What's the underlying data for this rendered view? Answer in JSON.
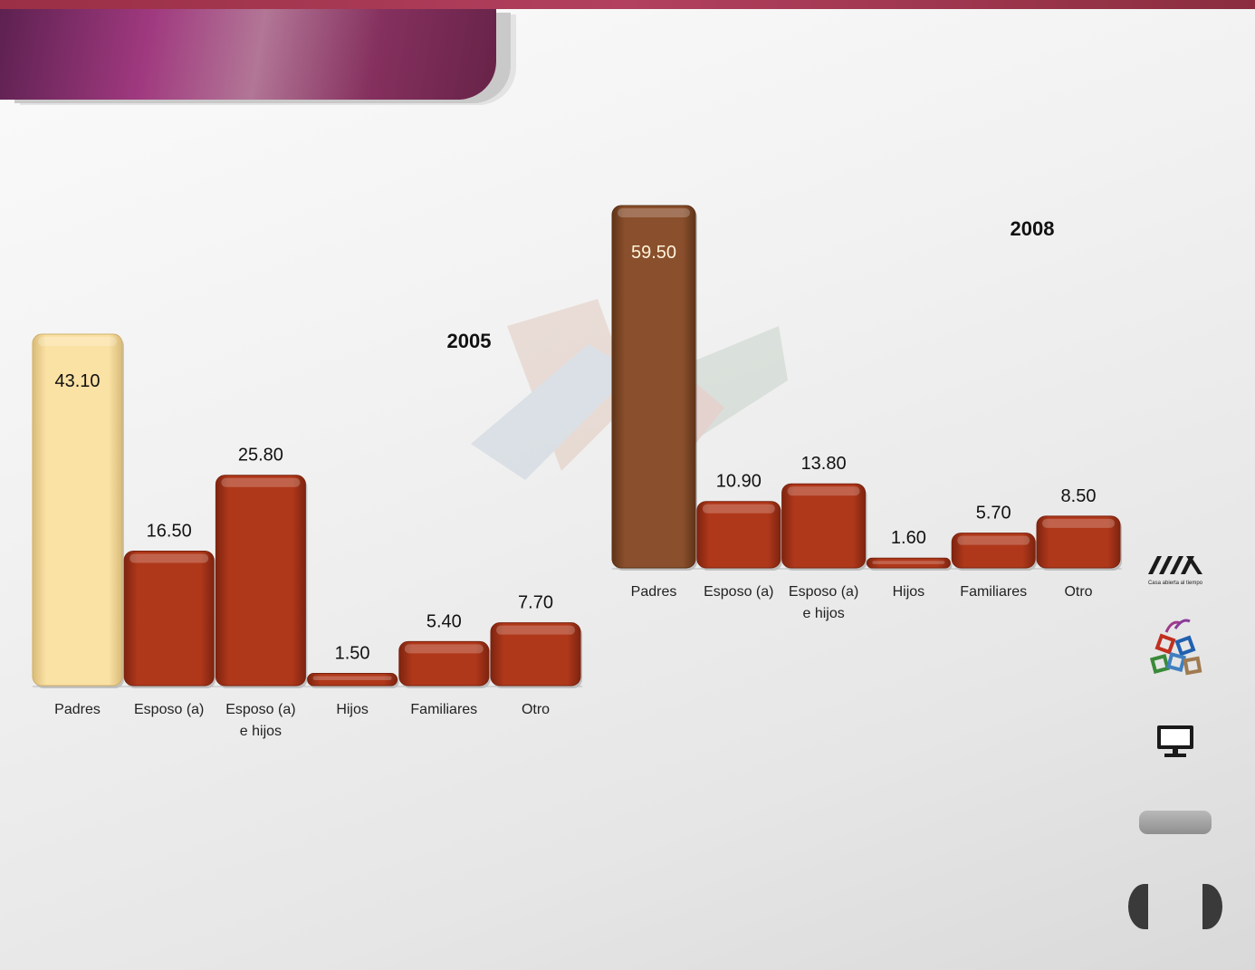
{
  "chart_data": [
    {
      "type": "bar",
      "title": "2005",
      "categories": [
        "Padres",
        "Esposo (a)",
        "Esposo (a)\ne hijos",
        "Hijos",
        "Familiares",
        "Otro"
      ],
      "values": [
        43.1,
        16.5,
        25.8,
        1.5,
        5.4,
        7.7
      ],
      "value_labels": [
        "43.10",
        "16.50",
        "25.80",
        "1.50",
        "5.40",
        "7.70"
      ],
      "xlabel": "",
      "ylabel": "",
      "grid": false,
      "highlight_index": 0,
      "colors": {
        "bar": "#b0381a",
        "highlight": "#fae1a4",
        "label_highlight": "#111111"
      }
    },
    {
      "type": "bar",
      "title": "2008",
      "categories": [
        "Padres",
        "Esposo (a)",
        "Esposo (a)\ne hijos",
        "Hijos",
        "Familiares",
        "Otro"
      ],
      "values": [
        59.5,
        10.9,
        13.8,
        1.6,
        5.7,
        8.5
      ],
      "value_labels": [
        "59.50",
        "10.90",
        "13.80",
        "1.60",
        "5.70",
        "8.50"
      ],
      "xlabel": "",
      "ylabel": "",
      "grid": false,
      "highlight_index": 0,
      "colors": {
        "bar": "#b0381a",
        "highlight": "#8a4f2c",
        "label_highlight": "#fff5dc"
      }
    }
  ],
  "logo": {
    "tagline": "Casa abierta al tiempo"
  },
  "icons": [
    "uam-logo-icon",
    "cubes-logo-icon",
    "monitor-icon",
    "previous-icon",
    "next-icon"
  ]
}
